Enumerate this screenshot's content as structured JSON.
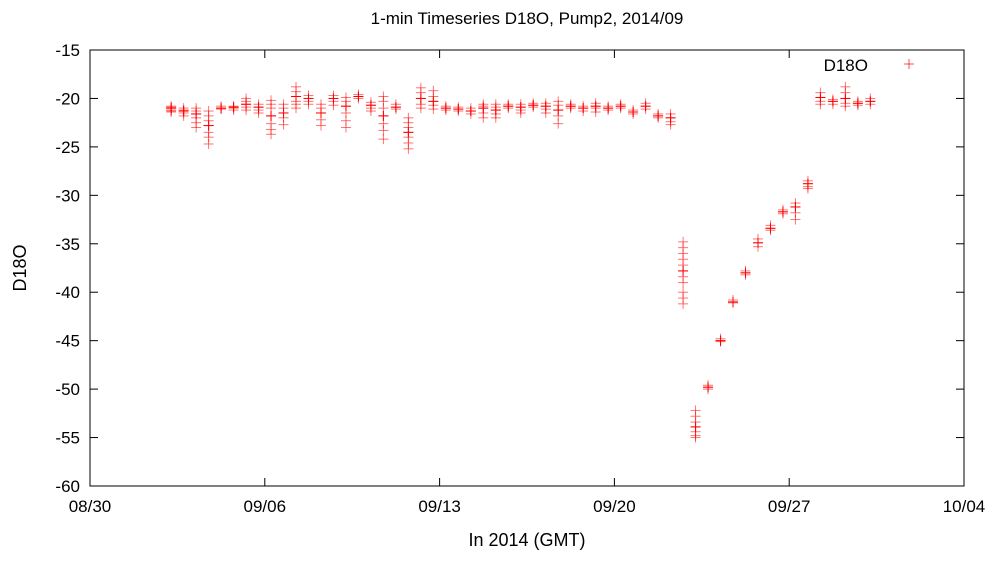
{
  "chart_data": {
    "type": "scatter",
    "title": "1-min Timeseries D18O, Pump2, 2014/09",
    "xlabel": "In 2014 (GMT)",
    "ylabel": "D18O",
    "x_ticks": [
      {
        "label": "08/30",
        "date": "2014-08-30"
      },
      {
        "label": "09/06",
        "date": "2014-09-06"
      },
      {
        "label": "09/13",
        "date": "2014-09-13"
      },
      {
        "label": "09/20",
        "date": "2014-09-20"
      },
      {
        "label": "09/27",
        "date": "2014-09-27"
      },
      {
        "label": "10/04",
        "date": "2014-10-04"
      }
    ],
    "xlim": [
      "2014-08-30",
      "2014-10-04"
    ],
    "ylim": [
      -60,
      -15
    ],
    "y_ticks": [
      -15,
      -20,
      -25,
      -30,
      -35,
      -40,
      -45,
      -50,
      -55,
      -60
    ],
    "grid": false,
    "legend_position": "top-right",
    "series": [
      {
        "name": "D18O",
        "color": "#ff0000",
        "marker": "plus",
        "clusters": [
          {
            "date": "2014-09-02 06:00",
            "values": [
              -20.8,
              -21.0,
              -21.2,
              -21.3,
              -20.9,
              -21.4
            ]
          },
          {
            "date": "2014-09-02 18:00",
            "values": [
              -21.0,
              -21.3,
              -21.5,
              -21.2,
              -21.8
            ]
          },
          {
            "date": "2014-09-03 06:00",
            "values": [
              -21.0,
              -21.3,
              -21.6,
              -22.0,
              -22.5,
              -23.0
            ]
          },
          {
            "date": "2014-09-03 18:00",
            "values": [
              -21.3,
              -21.8,
              -22.3,
              -22.8,
              -23.5,
              -24.0,
              -24.7
            ]
          },
          {
            "date": "2014-09-04 06:00",
            "values": [
              -20.8,
              -21.0,
              -21.1
            ]
          },
          {
            "date": "2014-09-04 18:00",
            "values": [
              -20.8,
              -21.0,
              -21.2,
              -20.9
            ]
          },
          {
            "date": "2014-09-05 06:00",
            "values": [
              -20.3,
              -20.6,
              -20.9,
              -21.2,
              -20.0
            ]
          },
          {
            "date": "2014-09-05 18:00",
            "values": [
              -20.6,
              -20.9,
              -21.2,
              -21.5
            ]
          },
          {
            "date": "2014-09-06 06:00",
            "values": [
              -20.2,
              -20.6,
              -21.0,
              -21.8,
              -22.6,
              -23.2,
              -23.7
            ]
          },
          {
            "date": "2014-09-06 18:00",
            "values": [
              -20.6,
              -21.0,
              -21.5,
              -22.0,
              -22.7
            ]
          },
          {
            "date": "2014-09-07 06:00",
            "values": [
              -18.8,
              -19.3,
              -19.8,
              -20.3,
              -20.6,
              -21.0
            ]
          },
          {
            "date": "2014-09-07 18:00",
            "values": [
              -19.7,
              -20.0,
              -20.3,
              -20.6
            ]
          },
          {
            "date": "2014-09-08 06:00",
            "values": [
              -20.6,
              -21.0,
              -21.5,
              -22.2,
              -22.8
            ]
          },
          {
            "date": "2014-09-08 18:00",
            "values": [
              -19.7,
              -20.0,
              -20.3,
              -20.7
            ]
          },
          {
            "date": "2014-09-09 06:00",
            "values": [
              -19.9,
              -20.3,
              -20.8,
              -21.5,
              -22.3,
              -23.0
            ]
          },
          {
            "date": "2014-09-09 18:00",
            "values": [
              -19.6,
              -19.8,
              -20.0
            ]
          },
          {
            "date": "2014-09-10 06:00",
            "values": [
              -20.4,
              -20.7,
              -21.0,
              -21.3
            ]
          },
          {
            "date": "2014-09-10 18:00",
            "values": [
              -19.8,
              -20.3,
              -21.0,
              -21.8,
              -22.6,
              -23.3,
              -24.2
            ]
          },
          {
            "date": "2014-09-11 06:00",
            "values": [
              -20.6,
              -20.9,
              -21.1
            ]
          },
          {
            "date": "2014-09-11 18:00",
            "values": [
              -22.0,
              -22.5,
              -23.0,
              -23.5,
              -24.0,
              -24.6,
              -25.2
            ]
          },
          {
            "date": "2014-09-12 06:00",
            "values": [
              -18.9,
              -19.4,
              -20.0,
              -20.6,
              -21.0
            ]
          },
          {
            "date": "2014-09-12 18:00",
            "values": [
              -19.2,
              -19.8,
              -20.3,
              -20.7,
              -21.1
            ]
          },
          {
            "date": "2014-09-13 06:00",
            "values": [
              -20.8,
              -21.0,
              -21.2
            ]
          },
          {
            "date": "2014-09-13 18:00",
            "values": [
              -20.9,
              -21.1,
              -21.3
            ]
          },
          {
            "date": "2014-09-14 06:00",
            "values": [
              -21.0,
              -21.3,
              -21.6
            ]
          },
          {
            "date": "2014-09-14 18:00",
            "values": [
              -20.6,
              -20.8,
              -21.0,
              -21.5,
              -22.0
            ]
          },
          {
            "date": "2014-09-15 06:00",
            "values": [
              -20.6,
              -20.9,
              -21.2,
              -21.6,
              -22.0
            ]
          },
          {
            "date": "2014-09-15 18:00",
            "values": [
              -20.6,
              -20.8,
              -21.0
            ]
          },
          {
            "date": "2014-09-16 06:00",
            "values": [
              -20.6,
              -20.9,
              -21.2,
              -21.5
            ]
          },
          {
            "date": "2014-09-16 18:00",
            "values": [
              -20.5,
              -20.7,
              -20.9
            ]
          },
          {
            "date": "2014-09-17 06:00",
            "values": [
              -20.5,
              -20.8,
              -21.1,
              -21.5
            ]
          },
          {
            "date": "2014-09-17 18:00",
            "values": [
              -20.3,
              -20.7,
              -21.2,
              -21.8,
              -22.6
            ]
          },
          {
            "date": "2014-09-18 06:00",
            "values": [
              -20.6,
              -20.8,
              -21.0
            ]
          },
          {
            "date": "2014-09-18 18:00",
            "values": [
              -20.8,
              -21.0,
              -21.3
            ]
          },
          {
            "date": "2014-09-19 06:00",
            "values": [
              -20.5,
              -20.8,
              -21.0,
              -21.4
            ]
          },
          {
            "date": "2014-09-19 18:00",
            "values": [
              -20.8,
              -21.0,
              -21.2
            ]
          },
          {
            "date": "2014-09-20 06:00",
            "values": [
              -20.6,
              -20.8,
              -21.0
            ]
          },
          {
            "date": "2014-09-20 18:00",
            "values": [
              -21.2,
              -21.4,
              -21.6
            ]
          },
          {
            "date": "2014-09-21 06:00",
            "values": [
              -20.5,
              -20.8,
              -21.1
            ]
          },
          {
            "date": "2014-09-21 18:00",
            "values": [
              -21.6,
              -21.8,
              -22.0
            ]
          },
          {
            "date": "2014-09-22 06:00",
            "values": [
              -21.6,
              -22.0,
              -22.4,
              -22.7
            ]
          },
          {
            "date": "2014-09-22 18:00",
            "values": [
              -34.8,
              -35.4,
              -36.0,
              -36.6,
              -37.2,
              -37.8,
              -38.4,
              -39.0,
              -40.0,
              -40.6,
              -41.2
            ]
          },
          {
            "date": "2014-09-23 06:00",
            "values": [
              -52.2,
              -52.8,
              -53.4,
              -53.9,
              -54.4,
              -54.8,
              -55.0
            ]
          },
          {
            "date": "2014-09-23 18:00",
            "values": [
              -49.6,
              -49.8,
              -50.0
            ]
          },
          {
            "date": "2014-09-24 06:00",
            "values": [
              -44.8,
              -45.0,
              -45.1
            ]
          },
          {
            "date": "2014-09-24 18:00",
            "values": [
              -40.8,
              -41.0,
              -41.1
            ]
          },
          {
            "date": "2014-09-25 06:00",
            "values": [
              -37.8,
              -38.0,
              -38.2
            ]
          },
          {
            "date": "2014-09-25 18:00",
            "values": [
              -34.5,
              -34.9,
              -35.3
            ]
          },
          {
            "date": "2014-09-26 06:00",
            "values": [
              -33.1,
              -33.4,
              -33.6
            ]
          },
          {
            "date": "2014-09-26 18:00",
            "values": [
              -31.5,
              -31.7,
              -31.9
            ]
          },
          {
            "date": "2014-09-27 06:00",
            "values": [
              -30.8,
              -31.2,
              -31.8,
              -32.5
            ]
          },
          {
            "date": "2014-09-27 18:00",
            "values": [
              -28.5,
              -28.8,
              -29.1,
              -29.3
            ]
          },
          {
            "date": "2014-09-28 06:00",
            "values": [
              -19.4,
              -19.9,
              -20.3,
              -20.6
            ]
          },
          {
            "date": "2014-09-28 18:00",
            "values": [
              -20.1,
              -20.3,
              -20.6
            ]
          },
          {
            "date": "2014-09-29 06:00",
            "values": [
              -18.8,
              -19.4,
              -20.0,
              -20.5,
              -20.8
            ]
          },
          {
            "date": "2014-09-29 18:00",
            "values": [
              -20.3,
              -20.5,
              -20.7
            ]
          },
          {
            "date": "2014-09-30 06:00",
            "values": [
              -20.0,
              -20.3,
              -20.6
            ]
          }
        ]
      }
    ]
  }
}
